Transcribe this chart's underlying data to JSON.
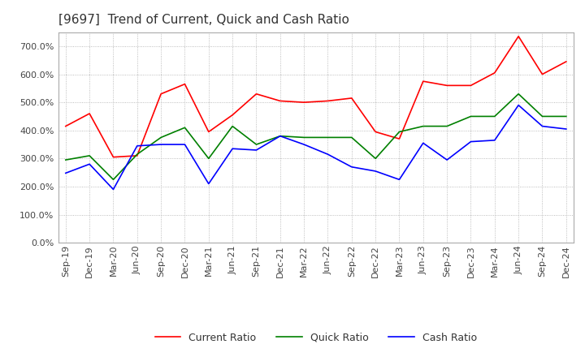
{
  "title": "[9697]  Trend of Current, Quick and Cash Ratio",
  "x_labels": [
    "Sep-19",
    "Dec-19",
    "Mar-20",
    "Jun-20",
    "Sep-20",
    "Dec-20",
    "Mar-21",
    "Jun-21",
    "Sep-21",
    "Dec-21",
    "Mar-22",
    "Jun-22",
    "Sep-22",
    "Dec-22",
    "Mar-23",
    "Jun-23",
    "Sep-23",
    "Dec-23",
    "Mar-24",
    "Jun-24",
    "Sep-24",
    "Dec-24"
  ],
  "current_ratio": [
    415,
    460,
    305,
    310,
    530,
    565,
    395,
    455,
    530,
    505,
    500,
    505,
    515,
    395,
    370,
    575,
    560,
    560,
    605,
    735,
    600,
    645
  ],
  "quick_ratio": [
    295,
    310,
    225,
    315,
    375,
    410,
    300,
    415,
    350,
    380,
    375,
    375,
    375,
    300,
    395,
    415,
    415,
    450,
    450,
    530,
    450,
    450
  ],
  "cash_ratio": [
    248,
    280,
    190,
    345,
    350,
    350,
    210,
    335,
    330,
    380,
    350,
    315,
    270,
    255,
    225,
    355,
    295,
    360,
    365,
    490,
    415,
    405
  ],
  "current_color": "#ff0000",
  "quick_color": "#008000",
  "cash_color": "#0000ff",
  "ylim": [
    0,
    750
  ],
  "yticks": [
    0,
    100,
    200,
    300,
    400,
    500,
    600,
    700
  ],
  "background_color": "#ffffff",
  "plot_bg_color": "#f5f5f5",
  "grid_color": "#aaaaaa",
  "title_fontsize": 11,
  "tick_fontsize": 8,
  "legend_fontsize": 9
}
